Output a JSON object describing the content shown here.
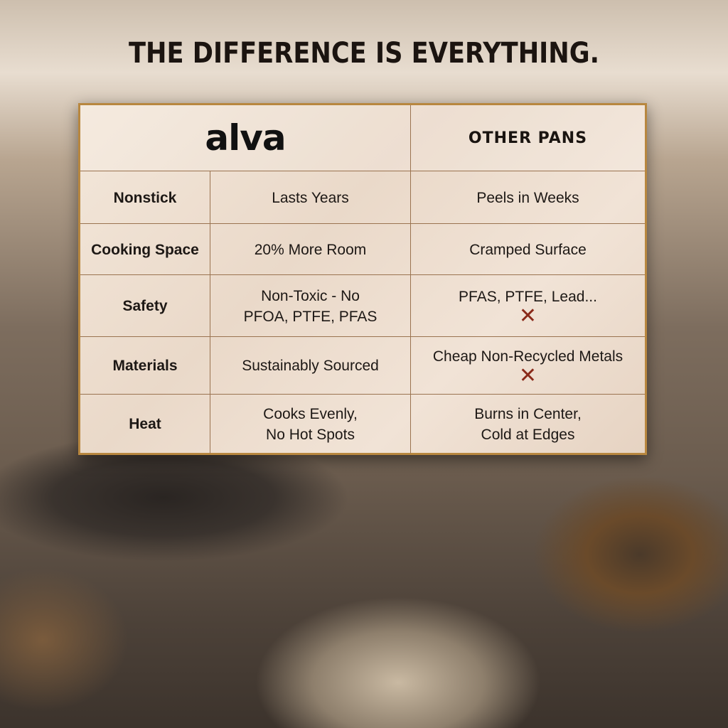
{
  "headline": "THE DIFFERENCE IS EVERYTHING.",
  "table": {
    "brand": "alva",
    "competitor": "OTHER PANS",
    "rows": [
      {
        "feature": "Nonstick",
        "alva": [
          "Lasts Years"
        ],
        "other": [
          "Peels in Weeks"
        ],
        "x": false
      },
      {
        "feature": "Cooking Space",
        "alva": [
          "20% More Room"
        ],
        "other": [
          "Cramped Surface"
        ],
        "x": false
      },
      {
        "feature": "Safety",
        "alva": [
          "Non-Toxic - No",
          "PFOA, PTFE, PFAS"
        ],
        "other": [
          "PFAS, PTFE, Lead..."
        ],
        "x": true
      },
      {
        "feature": "Materials",
        "alva": [
          "Sustainably Sourced"
        ],
        "other": [
          "Cheap Non-Recycled Metals"
        ],
        "x": true
      },
      {
        "feature": "Heat",
        "alva": [
          "Cooks Evenly,",
          "No Hot Spots"
        ],
        "other": [
          "Burns in Center,",
          "Cold at Edges"
        ],
        "x": false
      }
    ],
    "x_mark": "✕",
    "colors": {
      "border": "#b8873f",
      "x_mark": "#8a2a1a"
    }
  }
}
